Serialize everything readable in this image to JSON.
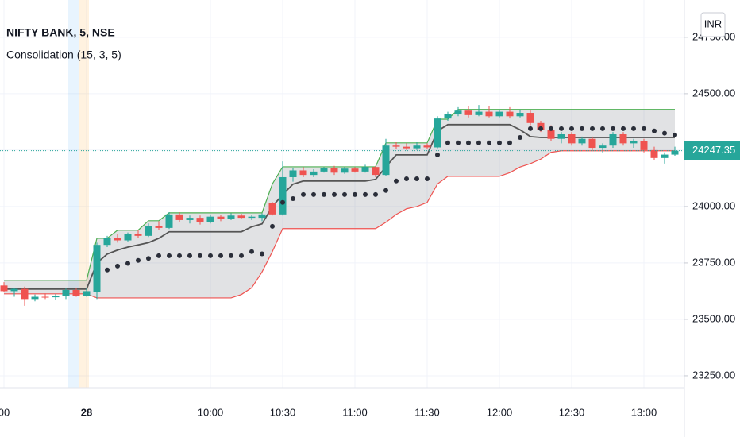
{
  "header": {
    "title": "NIFTY BANK, 5, NSE",
    "indicator": "Consolidation (15, 3, 5)",
    "currency": "INR"
  },
  "chart_data": {
    "type": "candlestick",
    "categories": [
      "00",
      null,
      null,
      null,
      null,
      null,
      null,
      null,
      "28",
      null,
      null,
      null,
      null,
      null,
      null,
      null,
      null,
      null,
      null,
      null,
      "10:00",
      null,
      null,
      null,
      null,
      null,
      null,
      "10:30",
      null,
      null,
      null,
      null,
      null,
      null,
      "11:00",
      null,
      null,
      null,
      null,
      null,
      null,
      "11:30",
      null,
      null,
      null,
      null,
      null,
      null,
      "12:00",
      null,
      null,
      null,
      null,
      null,
      null,
      "12:30",
      null,
      null,
      null,
      null,
      null,
      null,
      "13:00",
      null,
      null,
      null
    ],
    "open": [
      23650,
      23625,
      23635,
      23590,
      23600,
      23598,
      23605,
      23630,
      23605,
      23620,
      23830,
      23860,
      23850,
      23878,
      23870,
      23915,
      23905,
      23965,
      23940,
      23950,
      23930,
      23955,
      23945,
      23960,
      23950,
      23950,
      24015,
      23965,
      24130,
      24160,
      24140,
      24155,
      24170,
      24150,
      24168,
      24155,
      24175,
      24140,
      24270,
      24265,
      24258,
      24270,
      24262,
      24390,
      24410,
      24425,
      24405,
      24420,
      24400,
      24420,
      24400,
      24415,
      24370,
      24340,
      24300,
      24320,
      24280,
      24300,
      24260,
      24270,
      24320,
      24280,
      24290,
      24250,
      24215,
      24230
    ],
    "high": [
      23665,
      23640,
      23645,
      23610,
      23615,
      23612,
      23640,
      23640,
      23640,
      23840,
      23870,
      23880,
      23885,
      23895,
      23925,
      23935,
      23975,
      23975,
      23960,
      23960,
      23965,
      23962,
      23970,
      23968,
      23962,
      23970,
      24020,
      24200,
      24170,
      24175,
      24165,
      24175,
      24180,
      24175,
      24175,
      24185,
      24180,
      24300,
      24285,
      24280,
      24285,
      24280,
      24400,
      24420,
      24440,
      24445,
      24450,
      24445,
      24430,
      24440,
      24430,
      24425,
      24380,
      24360,
      24330,
      24330,
      24310,
      24310,
      24280,
      24330,
      24330,
      24300,
      24300,
      24265,
      24240,
      24265
    ],
    "low": [
      23620,
      23600,
      23560,
      23580,
      23590,
      23585,
      23590,
      23600,
      23600,
      23590,
      23820,
      23840,
      23845,
      23860,
      23865,
      23895,
      23900,
      23930,
      23925,
      23920,
      23925,
      23935,
      23940,
      23945,
      23940,
      23935,
      23960,
      23960,
      24110,
      24130,
      24130,
      24150,
      24140,
      24145,
      24150,
      24150,
      24130,
      24135,
      24255,
      24250,
      24250,
      24255,
      24258,
      24380,
      24400,
      24395,
      24400,
      24395,
      24395,
      24390,
      24395,
      24360,
      24330,
      24290,
      24280,
      24270,
      24270,
      24250,
      24240,
      24260,
      24270,
      24260,
      24240,
      24205,
      24190,
      24225
    ],
    "close": [
      23625,
      23635,
      23590,
      23600,
      23598,
      23605,
      23630,
      23605,
      23625,
      23830,
      23860,
      23850,
      23878,
      23870,
      23915,
      23905,
      23965,
      23940,
      23950,
      23930,
      23955,
      23945,
      23960,
      23950,
      23955,
      23965,
      23965,
      24130,
      24160,
      24140,
      24155,
      24170,
      24150,
      24168,
      24155,
      24175,
      24140,
      24270,
      24265,
      24258,
      24270,
      24262,
      24390,
      24410,
      24425,
      24405,
      24420,
      24400,
      24420,
      24400,
      24415,
      24370,
      24340,
      24300,
      24320,
      24280,
      24300,
      24260,
      24270,
      24320,
      24280,
      24290,
      24250,
      24215,
      24230,
      24247.35
    ],
    "up_color": "#26a69a",
    "down_color": "#ef5350",
    "band_fill": "rgba(120,123,134,0.22)",
    "series": [
      {
        "style": "line",
        "color": "#4caf50",
        "values": [
          23673,
          23673,
          23673,
          23673,
          23673,
          23673,
          23673,
          23673,
          23673,
          23859,
          23859,
          23895,
          23895,
          23895,
          23937,
          23937,
          23972,
          23972,
          23972,
          23972,
          23972,
          23972,
          23972,
          23972,
          23972,
          23972,
          24100,
          24176,
          24176,
          24176,
          24176,
          24176,
          24176,
          24176,
          24176,
          24176,
          24176,
          24282,
          24282,
          24282,
          24282,
          24282,
          24387,
          24387,
          24430,
          24430,
          24430,
          24430,
          24430,
          24430,
          24430,
          24430,
          24430,
          24430,
          24430,
          24430,
          24430,
          24430,
          24430,
          24430,
          24430,
          24430,
          24430,
          24430,
          24430,
          24430
        ]
      },
      {
        "style": "line",
        "color": "#ef5350",
        "values": [
          23613,
          23613,
          23613,
          23613,
          23613,
          23613,
          23613,
          23613,
          23613,
          23595,
          23595,
          23595,
          23595,
          23595,
          23595,
          23595,
          23595,
          23595,
          23595,
          23595,
          23595,
          23595,
          23595,
          23610,
          23640,
          23710,
          23800,
          23902,
          23902,
          23902,
          23902,
          23902,
          23902,
          23902,
          23902,
          23902,
          23902,
          23930,
          23965,
          23990,
          24000,
          24018,
          24100,
          24134,
          24134,
          24134,
          24134,
          24134,
          24134,
          24150,
          24175,
          24190,
          24210,
          24240,
          24247,
          24247,
          24247,
          24247,
          24247,
          24247,
          24247,
          24247,
          24247,
          24247,
          24247,
          24247
        ]
      },
      {
        "style": "line",
        "color": "#555555",
        "values": [
          23634,
          23634,
          23634,
          23634,
          23634,
          23634,
          23634,
          23634,
          23634,
          23750,
          23789,
          23807,
          23820,
          23830,
          23840,
          23859,
          23888,
          23888,
          23888,
          23888,
          23888,
          23888,
          23888,
          23888,
          23910,
          23923,
          24000,
          24053,
          24099,
          24113,
          24113,
          24113,
          24113,
          24113,
          24113,
          24113,
          24120,
          24176,
          24229,
          24229,
          24229,
          24229,
          24335,
          24363,
          24363,
          24363,
          24363,
          24363,
          24363,
          24363,
          24340,
          24310,
          24306,
          24306,
          24306,
          24306,
          24306,
          24306,
          24306,
          24306,
          24306,
          24306,
          24306,
          24306,
          24306,
          24306
        ]
      },
      {
        "style": "dots",
        "color": "#2a2e39",
        "values": [
          null,
          null,
          null,
          null,
          null,
          null,
          null,
          null,
          null,
          null,
          23719,
          23736,
          23748,
          23761,
          23770,
          23782,
          23782,
          23782,
          23782,
          23782,
          23782,
          23782,
          23782,
          23782,
          23800,
          23790,
          23912,
          24018,
          24035,
          24053,
          24053,
          24053,
          24053,
          24053,
          24053,
          24053,
          24053,
          24071,
          24113,
          24123,
          24123,
          24123,
          24229,
          24282,
          24282,
          24282,
          24282,
          24282,
          24282,
          24282,
          24306,
          24345,
          24345,
          24345,
          24345,
          24345,
          24345,
          24345,
          24345,
          24345,
          24345,
          24345,
          24345,
          24335,
          24325,
          24317
        ]
      }
    ],
    "ylim": [
      23197,
      24915
    ],
    "yticks": [
      {
        "value": 23250,
        "label": "23250.00"
      },
      {
        "value": 23500,
        "label": "23500.00"
      },
      {
        "value": 23750,
        "label": "23750.00"
      },
      {
        "value": 24000,
        "label": "24000.00"
      },
      {
        "value": 24250,
        "label": "24250.00"
      },
      {
        "value": 24500,
        "label": "24500.00"
      },
      {
        "value": 24750,
        "label": "24750.00"
      }
    ],
    "grid": true,
    "last_price": 24247.35,
    "last_color": "#26a69a"
  }
}
